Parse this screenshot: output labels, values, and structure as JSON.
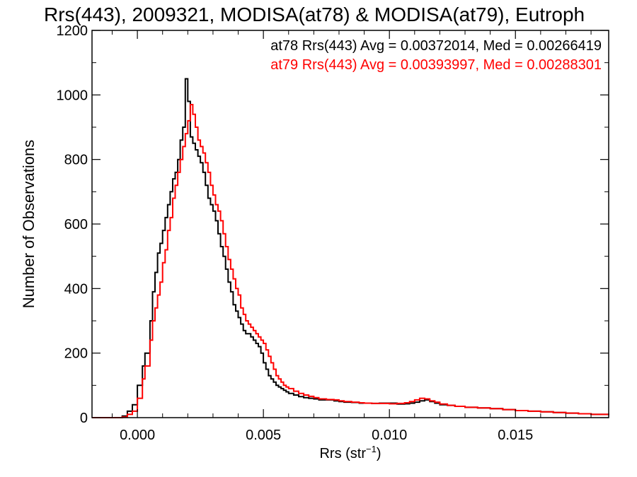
{
  "chart_data": {
    "type": "line",
    "title": "Rrs(443), 2009321, MODISA(at78) & MODISA(at79), Eutroph",
    "xlabel": "Rrs (str",
    "xlabel_sup": "−1",
    "xlabel_close": ")",
    "ylabel": "Number of Observations",
    "xlim": [
      -0.0018,
      0.0187
    ],
    "ylim": [
      0,
      1200
    ],
    "xticks": [
      0.0,
      0.005,
      0.01,
      0.015
    ],
    "xtick_labels": [
      "0.000",
      "0.005",
      "0.010",
      "0.015"
    ],
    "yticks": [
      0,
      200,
      400,
      600,
      800,
      1000,
      1200
    ],
    "ytick_labels": [
      "0",
      "200",
      "400",
      "600",
      "800",
      "1000",
      "1200"
    ],
    "grid": false,
    "legend_position": "top-right",
    "series": [
      {
        "name": "at78",
        "color": "#000000",
        "legend": "at78 Rrs(443) Avg = 0.00372014, Med = 0.00266419",
        "x": [
          -0.0018,
          -0.001,
          -0.0006,
          -0.0004,
          -0.0002,
          0.0,
          0.0002,
          0.0003,
          0.0005,
          0.0006,
          0.0007,
          0.0008,
          0.0009,
          0.001,
          0.0011,
          0.0012,
          0.0013,
          0.0014,
          0.0015,
          0.0016,
          0.0017,
          0.0018,
          0.0019,
          0.002,
          0.0021,
          0.0022,
          0.0023,
          0.0024,
          0.0025,
          0.0026,
          0.0027,
          0.0028,
          0.0029,
          0.003,
          0.0031,
          0.0032,
          0.0033,
          0.0034,
          0.0035,
          0.0036,
          0.0037,
          0.0038,
          0.0039,
          0.004,
          0.0041,
          0.0042,
          0.0043,
          0.0044,
          0.0045,
          0.0046,
          0.0047,
          0.0048,
          0.0049,
          0.005,
          0.0051,
          0.0052,
          0.0053,
          0.0054,
          0.0055,
          0.0056,
          0.0057,
          0.0058,
          0.0059,
          0.006,
          0.0062,
          0.0064,
          0.0066,
          0.0068,
          0.007,
          0.0072,
          0.0075,
          0.0078,
          0.008,
          0.0082,
          0.0085,
          0.0088,
          0.009,
          0.0093,
          0.0096,
          0.01,
          0.0103,
          0.0106,
          0.0108,
          0.011,
          0.0112,
          0.0114,
          0.0116,
          0.0118,
          0.012,
          0.0123,
          0.0126,
          0.013,
          0.0135,
          0.014,
          0.0145,
          0.015,
          0.0155,
          0.016,
          0.0165,
          0.017,
          0.0175,
          0.018,
          0.0187
        ],
        "y": [
          0,
          0,
          5,
          20,
          40,
          100,
          160,
          200,
          300,
          390,
          450,
          510,
          540,
          580,
          620,
          660,
          700,
          740,
          760,
          800,
          860,
          900,
          1050,
          980,
          870,
          850,
          830,
          810,
          790,
          760,
          720,
          680,
          660,
          640,
          610,
          570,
          530,
          500,
          460,
          420,
          390,
          350,
          330,
          310,
          290,
          270,
          260,
          260,
          250,
          240,
          230,
          220,
          200,
          170,
          150,
          130,
          120,
          110,
          100,
          95,
          90,
          85,
          80,
          75,
          70,
          65,
          62,
          60,
          58,
          55,
          55,
          52,
          50,
          48,
          47,
          45,
          45,
          44,
          45,
          45,
          42,
          43,
          45,
          48,
          52,
          55,
          50,
          45,
          40,
          38,
          35,
          32,
          30,
          28,
          25,
          22,
          20,
          18,
          16,
          14,
          12,
          10,
          8
        ]
      },
      {
        "name": "at79",
        "color": "#ff0000",
        "legend": "at79 Rrs(443) Avg = 0.00393997, Med = 0.00288301",
        "x": [
          -0.0018,
          -0.001,
          -0.0006,
          -0.0004,
          -0.0002,
          0.0,
          0.0002,
          0.0003,
          0.0005,
          0.0006,
          0.0007,
          0.0008,
          0.0009,
          0.001,
          0.0011,
          0.0012,
          0.0013,
          0.0014,
          0.0015,
          0.0016,
          0.0017,
          0.0018,
          0.0019,
          0.002,
          0.0021,
          0.0022,
          0.0023,
          0.0024,
          0.0025,
          0.0026,
          0.0027,
          0.0028,
          0.0029,
          0.003,
          0.0031,
          0.0032,
          0.0033,
          0.0034,
          0.0035,
          0.0036,
          0.0037,
          0.0038,
          0.0039,
          0.004,
          0.0041,
          0.0042,
          0.0043,
          0.0044,
          0.0045,
          0.0046,
          0.0047,
          0.0048,
          0.0049,
          0.005,
          0.0051,
          0.0052,
          0.0053,
          0.0054,
          0.0055,
          0.0056,
          0.0057,
          0.0058,
          0.0059,
          0.006,
          0.0062,
          0.0064,
          0.0066,
          0.0068,
          0.007,
          0.0072,
          0.0075,
          0.0078,
          0.008,
          0.0082,
          0.0085,
          0.0088,
          0.009,
          0.0093,
          0.0096,
          0.01,
          0.0103,
          0.0106,
          0.0108,
          0.011,
          0.0112,
          0.0114,
          0.0116,
          0.0118,
          0.012,
          0.0123,
          0.0126,
          0.013,
          0.0135,
          0.014,
          0.0145,
          0.015,
          0.0155,
          0.016,
          0.0165,
          0.017,
          0.0175,
          0.018,
          0.0187
        ],
        "y": [
          0,
          0,
          2,
          10,
          20,
          60,
          120,
          160,
          240,
          300,
          340,
          380,
          420,
          480,
          520,
          580,
          620,
          680,
          720,
          760,
          800,
          840,
          880,
          920,
          970,
          940,
          900,
          860,
          840,
          820,
          790,
          760,
          720,
          690,
          660,
          640,
          610,
          570,
          530,
          490,
          460,
          430,
          400,
          380,
          340,
          320,
          300,
          290,
          280,
          270,
          260,
          250,
          240,
          230,
          210,
          190,
          170,
          150,
          130,
          120,
          110,
          100,
          95,
          90,
          82,
          75,
          70,
          66,
          62,
          58,
          56,
          55,
          52,
          50,
          48,
          46,
          45,
          44,
          44,
          43,
          44,
          46,
          50,
          55,
          60,
          58,
          52,
          48,
          42,
          38,
          35,
          32,
          30,
          28,
          25,
          22,
          20,
          18,
          16,
          14,
          12,
          10,
          8
        ]
      }
    ]
  }
}
